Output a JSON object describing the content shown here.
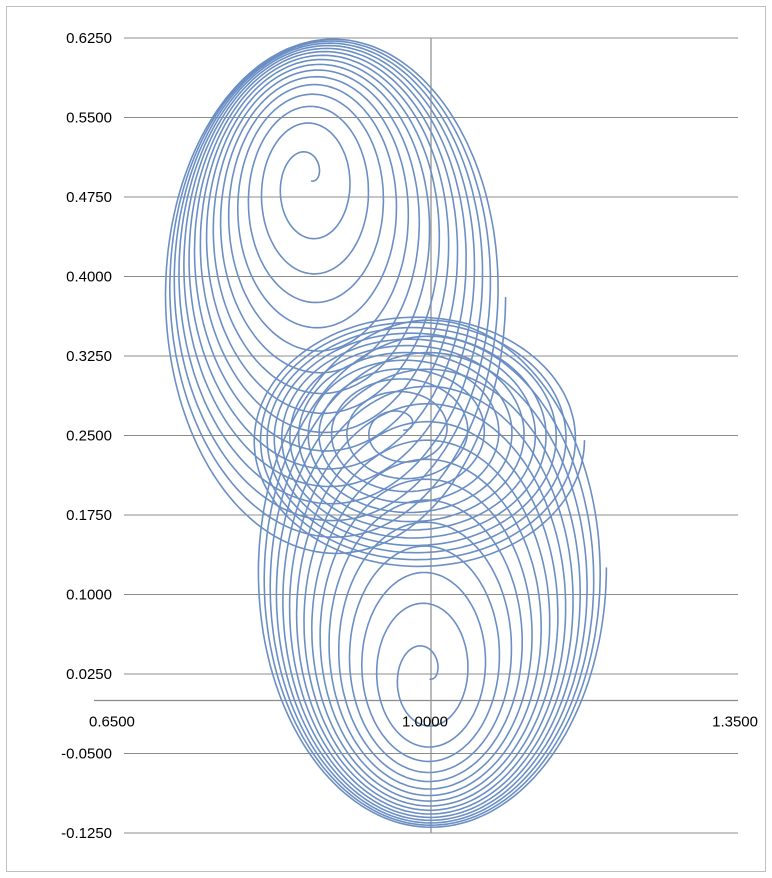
{
  "chart_data": {
    "type": "line",
    "title": "",
    "xlabel": "",
    "ylabel": "",
    "xlim": [
      0.65,
      1.35
    ],
    "ylim": [
      -0.125,
      0.625
    ],
    "x_ticks": [
      "0.6500",
      "1.0000",
      "1.3500"
    ],
    "y_ticks": [
      "0.6250",
      "0.5500",
      "0.4750",
      "0.4000",
      "0.3250",
      "0.2500",
      "0.1750",
      "0.1000",
      "0.0250",
      "-0.0500",
      "-0.1250"
    ],
    "y_tick_values": [
      0.625,
      0.55,
      0.475,
      0.4,
      0.325,
      0.25,
      0.175,
      0.1,
      0.025,
      -0.05,
      -0.125
    ],
    "grid": true,
    "legend": "none",
    "series_color": "#6b8fc4",
    "series": [
      {
        "trace": "spiral-upper-left",
        "center_start": [
          0.86,
          0.49
        ],
        "center_end": [
          0.89,
          0.38
        ],
        "radius_end": [
          0.195,
          0.245
        ],
        "turns": 16
      },
      {
        "trace": "spiral-middle",
        "center_start": [
          0.965,
          0.255
        ],
        "center_end": [
          0.985,
          0.245
        ],
        "radius_end": [
          0.19,
          0.12
        ],
        "turns": 12
      },
      {
        "trace": "spiral-lower",
        "center_start": [
          0.995,
          0.02
        ],
        "center_end": [
          1.0,
          0.125
        ],
        "radius_end": [
          0.2,
          0.245
        ],
        "turns": 16
      }
    ]
  }
}
